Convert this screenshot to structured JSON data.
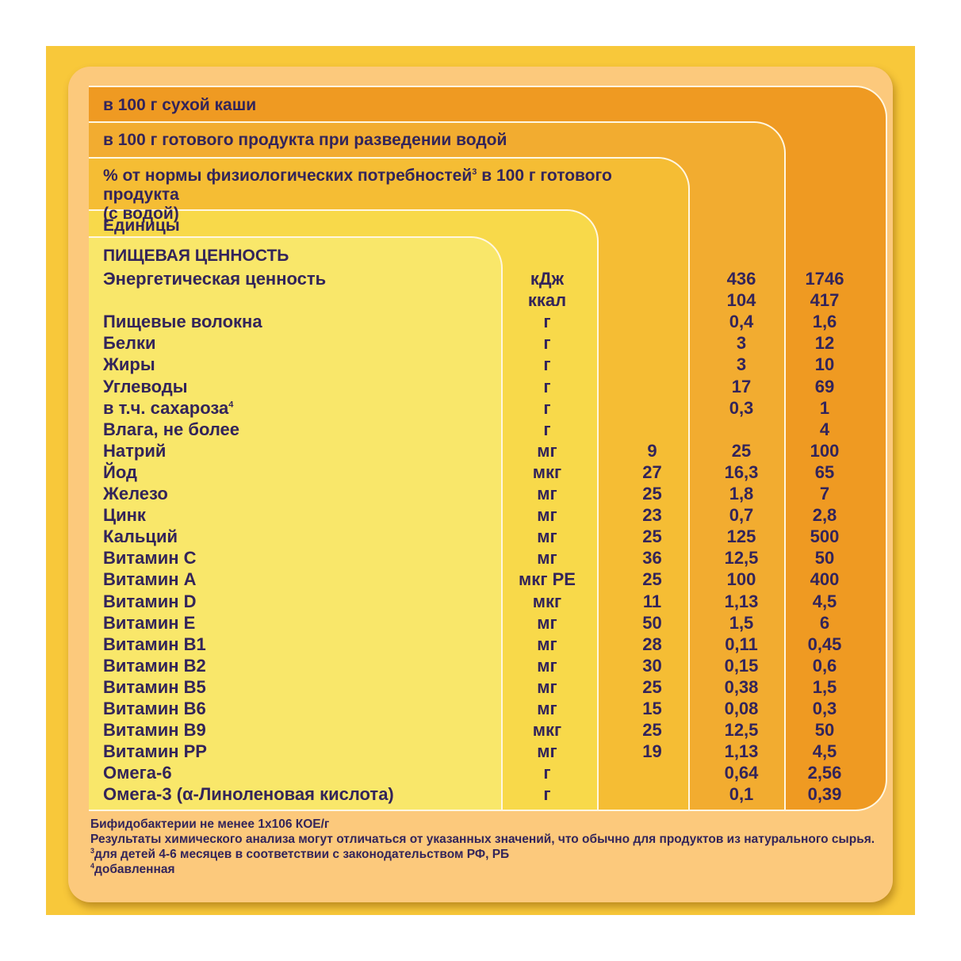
{
  "headers": {
    "dry": "в 100 г сухой каши",
    "ready": "в 100 г готового продукта при разведении водой",
    "percent_main": "% от нормы физиологических потребностей",
    "percent_sup": "3",
    "percent_tail": " в 100 г готового продукта",
    "percent_line2": "(с водой)",
    "units": "Единицы"
  },
  "section_title": "ПИЩЕВАЯ ЦЕННОСТЬ",
  "rows": [
    {
      "name": "Энергетическая ценность",
      "unit": "кДж",
      "pct": "",
      "ready": "436",
      "dry": "1746"
    },
    {
      "name": "",
      "unit": "ккал",
      "pct": "",
      "ready": "104",
      "dry": "417"
    },
    {
      "name": "Пищевые волокна",
      "unit": "г",
      "pct": "",
      "ready": "0,4",
      "dry": "1,6"
    },
    {
      "name": "Белки",
      "unit": "г",
      "pct": "",
      "ready": "3",
      "dry": "12"
    },
    {
      "name": "Жиры",
      "unit": "г",
      "pct": "",
      "ready": "3",
      "dry": "10"
    },
    {
      "name": "Углеводы",
      "unit": "г",
      "pct": "",
      "ready": "17",
      "dry": "69"
    },
    {
      "name": "в т.ч. сахароза",
      "sup": "4",
      "unit": "г",
      "pct": "",
      "ready": "0,3",
      "dry": "1"
    },
    {
      "name": "Влага, не более",
      "unit": "г",
      "pct": "",
      "ready": "",
      "dry": "4"
    },
    {
      "name": "Натрий",
      "unit": "мг",
      "pct": "9",
      "ready": "25",
      "dry": "100"
    },
    {
      "name": "Йод",
      "unit": "мкг",
      "pct": "27",
      "ready": "16,3",
      "dry": "65"
    },
    {
      "name": "Железо",
      "unit": "мг",
      "pct": "25",
      "ready": "1,8",
      "dry": "7"
    },
    {
      "name": "Цинк",
      "unit": "мг",
      "pct": "23",
      "ready": "0,7",
      "dry": "2,8"
    },
    {
      "name": "Кальций",
      "unit": "мг",
      "pct": "25",
      "ready": "125",
      "dry": "500"
    },
    {
      "name": "Витамин  С",
      "unit": "мг",
      "pct": "36",
      "ready": "12,5",
      "dry": "50"
    },
    {
      "name": "Витамин  А",
      "unit": "мкг РЕ",
      "pct": "25",
      "ready": "100",
      "dry": "400"
    },
    {
      "name": "Витамин  D",
      "unit": "мкг",
      "pct": "11",
      "ready": "1,13",
      "dry": "4,5"
    },
    {
      "name": "Витамин  Е",
      "unit": "мг",
      "pct": "50",
      "ready": "1,5",
      "dry": "6"
    },
    {
      "name": "Витамин  В1",
      "unit": "мг",
      "pct": "28",
      "ready": "0,11",
      "dry": "0,45"
    },
    {
      "name": "Витамин  В2",
      "unit": "мг",
      "pct": "30",
      "ready": "0,15",
      "dry": "0,6"
    },
    {
      "name": "Витамин  В5",
      "unit": "мг",
      "pct": "25",
      "ready": "0,38",
      "dry": "1,5"
    },
    {
      "name": "Витамин  В6",
      "unit": "мг",
      "pct": "15",
      "ready": "0,08",
      "dry": "0,3"
    },
    {
      "name": "Витамин  В9",
      "unit": "мкг",
      "pct": "25",
      "ready": "12,5",
      "dry": "50"
    },
    {
      "name": "Витамин  РР",
      "unit": "мг",
      "pct": "19",
      "ready": "1,13",
      "dry": "4,5"
    },
    {
      "name": "Омега-6",
      "unit": "г",
      "pct": "",
      "ready": "0,64",
      "dry": "2,56"
    },
    {
      "name": "Омега-3 (α-Линоленовая кислота)",
      "unit": "г",
      "pct": "",
      "ready": "0,1",
      "dry": "0,39"
    }
  ],
  "footnotes": {
    "bifido": "Бифидобактерии не менее 1х106 КОЕ/г",
    "disclaimer": "Результаты химического анализа могут отличаться от указанных значений, что обычно для продуктов из натурального сырья.",
    "note3_mark": "3",
    "note3": "для детей 4-6 месяцев в соответствии с законодательством РФ, РБ",
    "note4_mark": "4",
    "note4": "добавленная"
  }
}
